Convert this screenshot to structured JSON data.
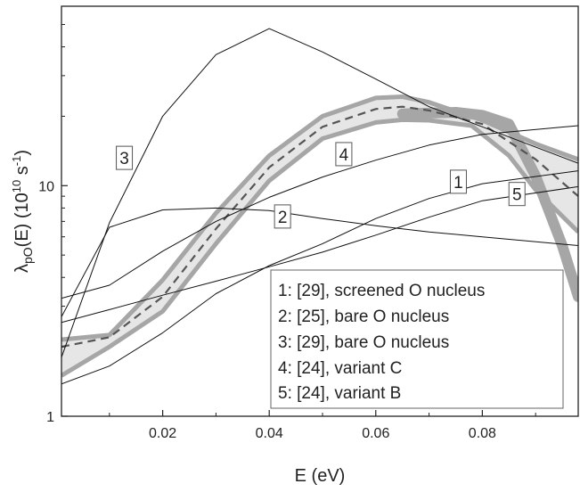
{
  "chart_data": {
    "type": "line",
    "xlabel": "E (eV)",
    "ylabel": {
      "base": "λ",
      "sub": "pO",
      "mid": "(E) (10",
      "sup1": "10",
      "unit": " s",
      "sup2": "-1",
      "end": ")"
    },
    "xlim": [
      0.001,
      0.098
    ],
    "ylim": [
      1,
      60
    ],
    "yscale": "log",
    "x_ticks": [
      {
        "value": 0.02,
        "label": "0.02"
      },
      {
        "value": 0.04,
        "label": "0.04"
      },
      {
        "value": 0.06,
        "label": "0.06"
      },
      {
        "value": 0.08,
        "label": "0.08"
      }
    ],
    "y_ticks": [
      {
        "value": 1,
        "label": "1"
      },
      {
        "value": 10,
        "label": "10"
      }
    ],
    "colors": {
      "curve": "#111111",
      "band_fill": "#e6e6e6",
      "band_edge": "#a6a6a6",
      "dashed": "#555555"
    },
    "band": {
      "upper": [
        [
          0.001,
          2.15
        ],
        [
          0.01,
          2.25
        ],
        [
          0.02,
          3.9
        ],
        [
          0.03,
          7.6
        ],
        [
          0.04,
          13.5
        ],
        [
          0.05,
          20
        ],
        [
          0.06,
          24
        ],
        [
          0.065,
          24.3
        ],
        [
          0.07,
          23
        ],
        [
          0.08,
          19.2
        ],
        [
          0.09,
          15.2
        ],
        [
          0.098,
          13
        ]
      ],
      "lower": [
        [
          0.001,
          1.5
        ],
        [
          0.01,
          2.0
        ],
        [
          0.02,
          2.85
        ],
        [
          0.03,
          5.6
        ],
        [
          0.04,
          10.5
        ],
        [
          0.05,
          16
        ],
        [
          0.06,
          18.8
        ],
        [
          0.065,
          19.3
        ],
        [
          0.07,
          19.2
        ],
        [
          0.078,
          18.2
        ],
        [
          0.085,
          13.5
        ],
        [
          0.09,
          9.6
        ],
        [
          0.098,
          6.3
        ]
      ],
      "thick_outer": [
        [
          0.065,
          20.5
        ],
        [
          0.075,
          20.8
        ],
        [
          0.08,
          20.2
        ],
        [
          0.085,
          18.5
        ],
        [
          0.09,
          11
        ],
        [
          0.095,
          5.5
        ],
        [
          0.098,
          3.3
        ]
      ],
      "center": [
        [
          0.001,
          2.0
        ],
        [
          0.01,
          2.2
        ],
        [
          0.02,
          3.3
        ],
        [
          0.03,
          6.5
        ],
        [
          0.04,
          12
        ],
        [
          0.05,
          18
        ],
        [
          0.06,
          21.5
        ],
        [
          0.065,
          22
        ],
        [
          0.07,
          21.2
        ],
        [
          0.08,
          18.5
        ],
        [
          0.09,
          13
        ],
        [
          0.098,
          9
        ]
      ]
    },
    "series": [
      {
        "tag": "1",
        "legend": "1: [29], screened O nucleus",
        "tag_at": [
          0.0755,
          10.4
        ],
        "points": [
          [
            0.001,
            1.38
          ],
          [
            0.01,
            1.65
          ],
          [
            0.02,
            2.3
          ],
          [
            0.03,
            3.4
          ],
          [
            0.04,
            4.5
          ],
          [
            0.05,
            5.6
          ],
          [
            0.06,
            7.2
          ],
          [
            0.07,
            8.8
          ],
          [
            0.08,
            10.2
          ],
          [
            0.098,
            11.6
          ]
        ]
      },
      {
        "tag": "2",
        "legend": "2: [25], bare O nucleus",
        "tag_at": [
          0.0425,
          7.35
        ],
        "points": [
          [
            0.001,
            2.7
          ],
          [
            0.01,
            6.6
          ],
          [
            0.02,
            7.85
          ],
          [
            0.03,
            8.0
          ],
          [
            0.04,
            7.8
          ],
          [
            0.05,
            7.2
          ],
          [
            0.06,
            6.7
          ],
          [
            0.07,
            6.3
          ],
          [
            0.08,
            6.0
          ],
          [
            0.098,
            5.5
          ]
        ]
      },
      {
        "tag": "3",
        "legend": "3: [29], bare O nucleus",
        "tag_at": [
          0.0128,
          13.2
        ],
        "points": [
          [
            0.001,
            1.8
          ],
          [
            0.01,
            6.9
          ],
          [
            0.02,
            20
          ],
          [
            0.03,
            37
          ],
          [
            0.04,
            48
          ],
          [
            0.05,
            38
          ],
          [
            0.06,
            29
          ],
          [
            0.07,
            22
          ],
          [
            0.08,
            18
          ],
          [
            0.098,
            12.5
          ]
        ]
      },
      {
        "tag": "4",
        "legend": "4: [24], variant C",
        "tag_at": [
          0.054,
          13.7
        ],
        "points": [
          [
            0.001,
            3.25
          ],
          [
            0.01,
            3.7
          ],
          [
            0.02,
            5.2
          ],
          [
            0.03,
            7.0
          ],
          [
            0.04,
            8.9
          ],
          [
            0.05,
            10.9
          ],
          [
            0.06,
            12.9
          ],
          [
            0.07,
            15.0
          ],
          [
            0.08,
            16.7
          ],
          [
            0.098,
            18.2
          ]
        ]
      },
      {
        "tag": "5",
        "legend": "5: [24], variant B",
        "tag_at": [
          0.0865,
          9.2
        ],
        "points": [
          [
            0.001,
            2.55
          ],
          [
            0.01,
            2.9
          ],
          [
            0.02,
            3.35
          ],
          [
            0.03,
            3.85
          ],
          [
            0.04,
            4.45
          ],
          [
            0.05,
            5.15
          ],
          [
            0.06,
            6.1
          ],
          [
            0.07,
            7.3
          ],
          [
            0.08,
            8.6
          ],
          [
            0.098,
            9.9
          ]
        ]
      }
    ]
  }
}
